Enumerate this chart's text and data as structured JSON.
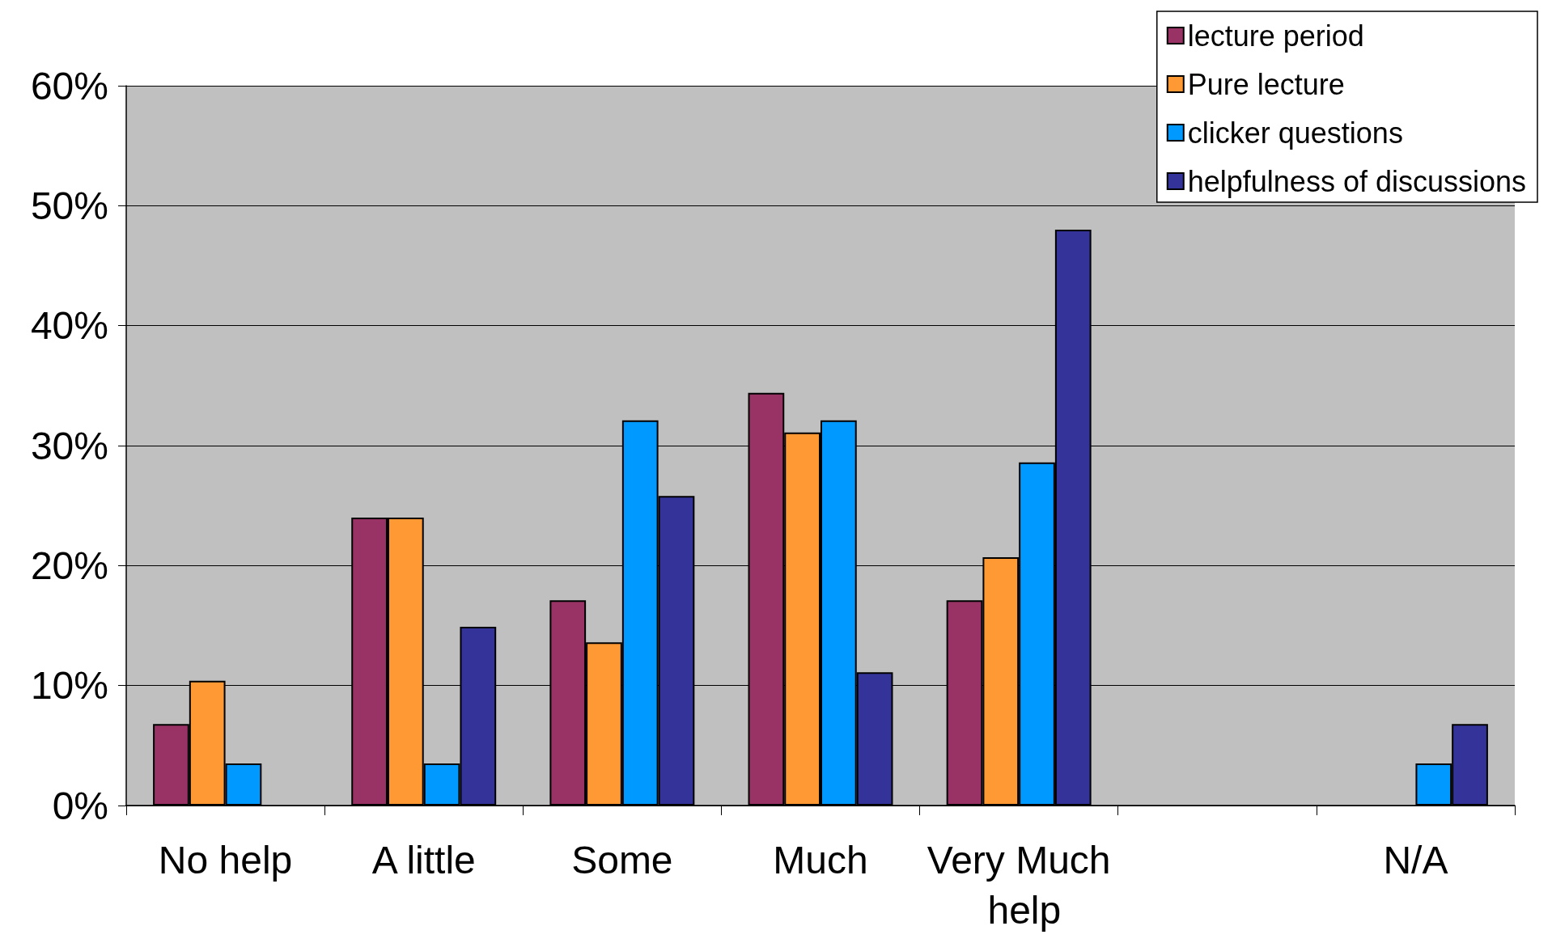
{
  "chart_data": {
    "type": "bar",
    "categories": [
      "No help",
      "A little",
      "Some",
      "Much",
      "Very Much help",
      null,
      "N/A"
    ],
    "series": [
      {
        "name": "lecture period",
        "color": "#993366",
        "values": [
          6.8,
          24.0,
          17.1,
          34.4,
          17.1,
          null,
          null
        ]
      },
      {
        "name": "Pure lecture",
        "color": "#ff9933",
        "values": [
          10.4,
          24.0,
          13.6,
          31.1,
          20.7,
          null,
          null
        ]
      },
      {
        "name": "clicker questions",
        "color": "#0099ff",
        "values": [
          3.5,
          3.5,
          32.1,
          32.1,
          28.6,
          null,
          3.5
        ]
      },
      {
        "name": "helpfulness of discussions",
        "color": "#333399",
        "values": [
          null,
          14.9,
          25.8,
          11.1,
          48.0,
          null,
          6.8
        ]
      }
    ],
    "ylim": [
      0,
      60
    ],
    "yticks": [
      {
        "value": 0,
        "label": "0%"
      },
      {
        "value": 10,
        "label": "10%"
      },
      {
        "value": 20,
        "label": "20%"
      },
      {
        "value": 30,
        "label": "30%"
      },
      {
        "value": 40,
        "label": "40%"
      },
      {
        "value": 50,
        "label": "50%"
      },
      {
        "value": 60,
        "label": "60%"
      }
    ],
    "grid": "y",
    "legend": "top right"
  }
}
